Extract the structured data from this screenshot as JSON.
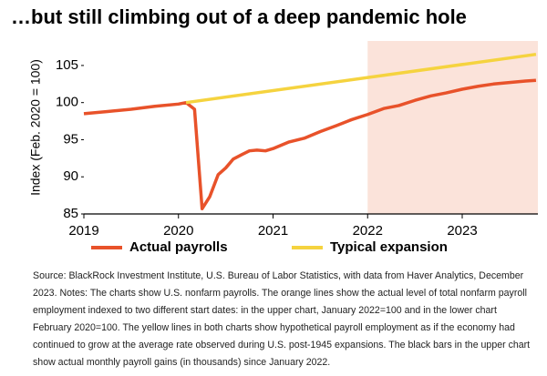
{
  "chart_data": {
    "type": "line",
    "title": "…but still climbing out of a deep pandemic hole",
    "y_label": "Index (Feb. 2020 = 100)",
    "xlim": [
      2019,
      2023.8
    ],
    "xticks": [
      2019,
      2020,
      2021,
      2022,
      2023
    ],
    "ylim": [
      85,
      108.3
    ],
    "yticks": [
      85,
      90,
      95,
      100,
      105
    ],
    "shaded_from": 2022,
    "shade_color": "#fbe3da",
    "legend": "bottom",
    "series": [
      {
        "name": "Actual payrolls",
        "color": "#e8522a",
        "x": [
          2019.0,
          2019.25,
          2019.5,
          2019.75,
          2020.0,
          2020.08,
          2020.17,
          2020.25,
          2020.33,
          2020.42,
          2020.5,
          2020.58,
          2020.67,
          2020.75,
          2020.83,
          2020.92,
          2021.0,
          2021.17,
          2021.33,
          2021.5,
          2021.67,
          2021.83,
          2022.0,
          2022.17,
          2022.33,
          2022.5,
          2022.67,
          2022.83,
          2023.0,
          2023.17,
          2023.33,
          2023.5,
          2023.67,
          2023.78
        ],
        "values": [
          98.5,
          98.8,
          99.1,
          99.5,
          99.8,
          100.0,
          99.1,
          85.7,
          87.3,
          90.3,
          91.2,
          92.4,
          93.0,
          93.5,
          93.6,
          93.5,
          93.8,
          94.7,
          95.2,
          96.1,
          96.9,
          97.7,
          98.4,
          99.2,
          99.6,
          100.3,
          100.9,
          101.3,
          101.8,
          102.2,
          102.5,
          102.7,
          102.9,
          103.0
        ]
      },
      {
        "name": "Typical expansion",
        "color": "#f5d33f",
        "x": [
          2020.08,
          2023.78
        ],
        "values": [
          100.0,
          106.5
        ]
      }
    ],
    "source": "Source: BlackRock Investment Institute, U.S. Bureau of Labor Statistics, with data from Haver Analytics, December 2023. Notes: The charts show U.S. nonfarm payrolls. The orange  lines show the actual level of total nonfarm payroll employment indexed to two different start dates: in the upper chart, January 2022=100 and in the lower chart February 2020=100. The yellow lines in both charts show hypothetical payroll employment as if the economy had continued to grow at the average rate observed during U.S. post-1945 expansions. The black bars in the upper chart show actual monthly payroll gains (in thousands) since January 2022."
  }
}
